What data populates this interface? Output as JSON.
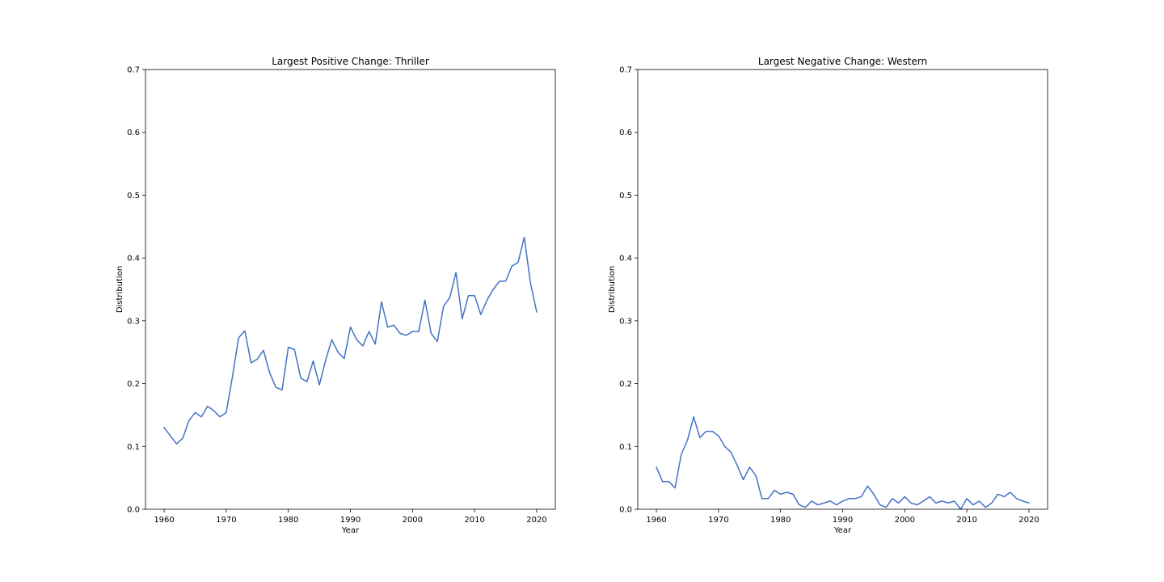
{
  "chart_data": [
    {
      "type": "line",
      "title": "Largest Positive Change: Thriller",
      "xlabel": "Year",
      "ylabel": "Distribution",
      "xlim": [
        1957,
        2023
      ],
      "ylim": [
        0,
        0.7
      ],
      "xticks": [
        1960,
        1970,
        1980,
        1990,
        2000,
        2010,
        2020
      ],
      "yticks": [
        0.0,
        0.1,
        0.2,
        0.3,
        0.4,
        0.5,
        0.6,
        0.7
      ],
      "ytick_labels": [
        "0.0",
        "0.1",
        "0.2",
        "0.3",
        "0.4",
        "0.5",
        "0.6",
        "0.7"
      ],
      "grid": false,
      "color": "#4472c4",
      "x": [
        1960,
        1961,
        1962,
        1963,
        1964,
        1965,
        1966,
        1967,
        1968,
        1969,
        1970,
        1971,
        1972,
        1973,
        1974,
        1975,
        1976,
        1977,
        1978,
        1979,
        1980,
        1981,
        1982,
        1983,
        1984,
        1985,
        1986,
        1987,
        1988,
        1989,
        1990,
        1991,
        1992,
        1993,
        1994,
        1995,
        1996,
        1997,
        1998,
        1999,
        2000,
        2001,
        2002,
        2003,
        2004,
        2005,
        2006,
        2007,
        2008,
        2009,
        2010,
        2011,
        2012,
        2013,
        2014,
        2015,
        2016,
        2017,
        2018,
        2019,
        2020
      ],
      "y": [
        0.13,
        0.117,
        0.104,
        0.113,
        0.141,
        0.154,
        0.147,
        0.164,
        0.157,
        0.147,
        0.154,
        0.211,
        0.273,
        0.284,
        0.233,
        0.239,
        0.253,
        0.217,
        0.194,
        0.19,
        0.258,
        0.254,
        0.209,
        0.203,
        0.236,
        0.198,
        0.237,
        0.27,
        0.25,
        0.24,
        0.29,
        0.27,
        0.26,
        0.283,
        0.263,
        0.33,
        0.29,
        0.293,
        0.28,
        0.277,
        0.283,
        0.283,
        0.333,
        0.28,
        0.267,
        0.323,
        0.337,
        0.377,
        0.303,
        0.34,
        0.34,
        0.31,
        0.333,
        0.35,
        0.363,
        0.363,
        0.387,
        0.393,
        0.433,
        0.36,
        0.314
      ]
    },
    {
      "type": "line",
      "title": "Largest Negative Change: Western",
      "xlabel": "Year",
      "ylabel": "Distribution",
      "xlim": [
        1957,
        2023
      ],
      "ylim": [
        0,
        0.7
      ],
      "xticks": [
        1960,
        1970,
        1980,
        1990,
        2000,
        2010,
        2020
      ],
      "yticks": [
        0.0,
        0.1,
        0.2,
        0.3,
        0.4,
        0.5,
        0.6,
        0.7
      ],
      "ytick_labels": [
        "0.0",
        "0.1",
        "0.2",
        "0.3",
        "0.4",
        "0.5",
        "0.6",
        "0.7"
      ],
      "grid": false,
      "color": "#4472c4",
      "x": [
        1960,
        1961,
        1962,
        1963,
        1964,
        1965,
        1966,
        1967,
        1968,
        1969,
        1970,
        1971,
        1972,
        1973,
        1974,
        1975,
        1976,
        1977,
        1978,
        1979,
        1980,
        1981,
        1982,
        1983,
        1984,
        1985,
        1986,
        1987,
        1988,
        1989,
        1990,
        1991,
        1992,
        1993,
        1994,
        1995,
        1996,
        1997,
        1998,
        1999,
        2000,
        2001,
        2002,
        2003,
        2004,
        2005,
        2006,
        2007,
        2008,
        2009,
        2010,
        2011,
        2012,
        2013,
        2014,
        2015,
        2016,
        2017,
        2018,
        2019,
        2020
      ],
      "y": [
        0.067,
        0.044,
        0.044,
        0.034,
        0.087,
        0.11,
        0.147,
        0.114,
        0.124,
        0.124,
        0.117,
        0.1,
        0.091,
        0.07,
        0.047,
        0.067,
        0.054,
        0.017,
        0.017,
        0.03,
        0.024,
        0.027,
        0.024,
        0.007,
        0.003,
        0.013,
        0.007,
        0.01,
        0.013,
        0.007,
        0.013,
        0.017,
        0.017,
        0.02,
        0.037,
        0.024,
        0.007,
        0.003,
        0.017,
        0.01,
        0.02,
        0.01,
        0.007,
        0.013,
        0.02,
        0.01,
        0.013,
        0.01,
        0.013,
        0.0,
        0.017,
        0.007,
        0.013,
        0.003,
        0.01,
        0.024,
        0.02,
        0.027,
        0.017,
        0.013,
        0.01
      ]
    }
  ]
}
